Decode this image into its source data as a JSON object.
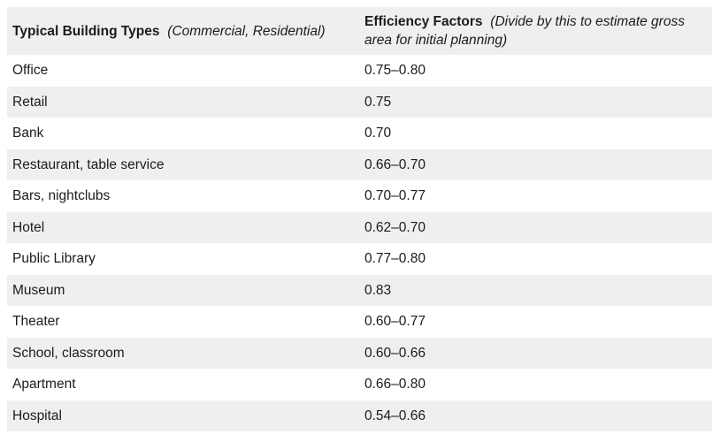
{
  "table": {
    "header": {
      "col1_title": "Typical Building Types",
      "col1_note": "(Commercial, Residential)",
      "col2_title": "Efficiency Factors",
      "col2_note": "(Divide by this to estimate gross area for initial planning)"
    },
    "rows": [
      {
        "type": "Office",
        "factor": "0.75–0.80"
      },
      {
        "type": "Retail",
        "factor": "0.75"
      },
      {
        "type": "Bank",
        "factor": "0.70"
      },
      {
        "type": "Restaurant, table service",
        "factor": "0.66–0.70"
      },
      {
        "type": "Bars, nightclubs",
        "factor": "0.70–0.77"
      },
      {
        "type": "Hotel",
        "factor": "0.62–0.70"
      },
      {
        "type": "Public Library",
        "factor": "0.77–0.80"
      },
      {
        "type": "Museum",
        "factor": "0.83"
      },
      {
        "type": "Theater",
        "factor": "0.60–0.77"
      },
      {
        "type": "School, classroom",
        "factor": "0.60–0.66"
      },
      {
        "type": "Apartment",
        "factor": "0.66–0.80"
      },
      {
        "type": "Hospital",
        "factor": "0.54–0.66"
      }
    ],
    "colors": {
      "stripe": "#efefef",
      "text": "#1b1b1b"
    }
  }
}
